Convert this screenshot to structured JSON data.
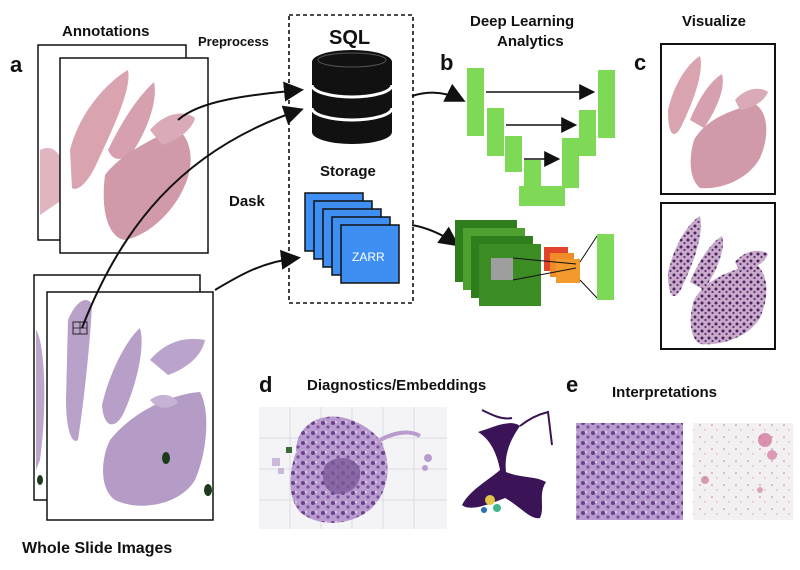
{
  "panels": {
    "a": "a",
    "b": "b",
    "c": "c",
    "d": "d",
    "e": "e"
  },
  "labels": {
    "annotations": "Annotations",
    "preprocess": "Preprocess",
    "sql": "SQL",
    "storage": "Storage",
    "dask": "Dask",
    "zarr": "ZARR",
    "deep_learning_line1": "Deep Learning",
    "deep_learning_line2": "Analytics",
    "visualize": "Visualize",
    "whole_slide_images": "Whole Slide Images",
    "diagnostics": "Diagnostics/Embeddings",
    "interpretations": "Interpretations"
  },
  "colors": {
    "tissue_pink": "#d9a3b0",
    "tissue_purple": "#b9a2c9",
    "unet_green": "#7ed957",
    "cnn_dark_green": "#2f7d1c",
    "zarr_blue": "#3f8ff2",
    "cnn_orange": "#f29a2e",
    "embed_purple": "#3b1457"
  }
}
